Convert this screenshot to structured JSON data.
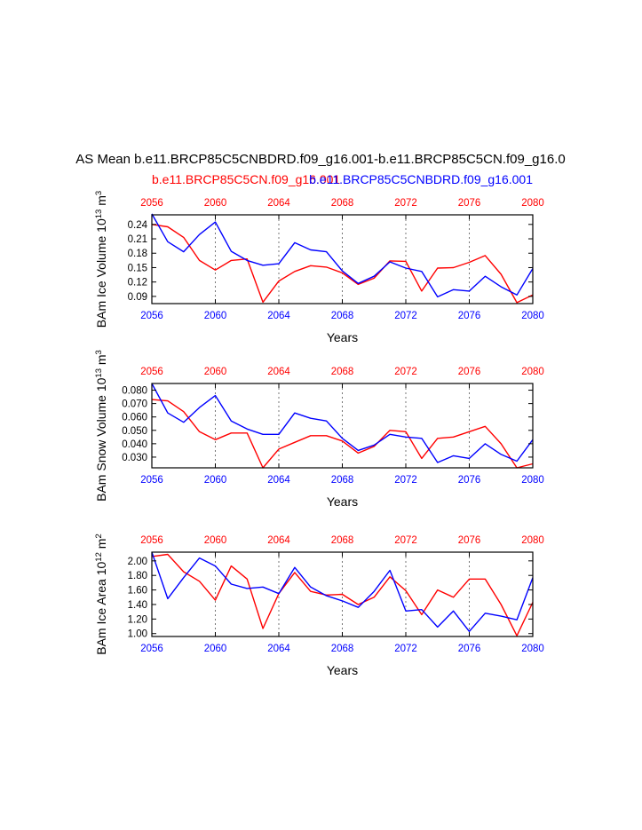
{
  "figure": {
    "title": "AS Mean b.e11.BRCP85C5CNBDRD.f09_g16.001-b.e11.BRCP85C5CN.f09_g16.0",
    "subtitle_red": "b.e11.BRCP85C5CN.f09_g16.001",
    "subtitle_blue": "b.e11.BRCP85C5CNBDRD.f09_g16.001"
  },
  "colors": {
    "red": "#ff0000",
    "blue": "#0000ff",
    "axis": "#000000",
    "grid": "#555555"
  },
  "chart_data": [
    {
      "type": "line",
      "ylabel": "BAm Ice Volume 10^13 m^3",
      "xlabel": "Years",
      "xlim": [
        2056,
        2080
      ],
      "ylim": [
        0.075,
        0.26
      ],
      "xticks": [
        2056,
        2060,
        2064,
        2068,
        2072,
        2076,
        2080
      ],
      "yticks": [
        0.09,
        0.12,
        0.15,
        0.18,
        0.21,
        0.24
      ],
      "ytick_labels": [
        "0.09",
        "0.12",
        "0.15",
        "0.18",
        "0.21",
        "0.24"
      ],
      "vlines": [
        2060,
        2064,
        2068,
        2072,
        2076
      ],
      "x": [
        2056,
        2057,
        2058,
        2059,
        2060,
        2061,
        2062,
        2063,
        2064,
        2065,
        2066,
        2067,
        2068,
        2069,
        2070,
        2071,
        2072,
        2073,
        2074,
        2075,
        2076,
        2077,
        2078,
        2079,
        2080
      ],
      "series": [
        {
          "color": "red",
          "values": [
            0.24,
            0.235,
            0.213,
            0.165,
            0.145,
            0.165,
            0.168,
            0.078,
            0.122,
            0.142,
            0.154,
            0.151,
            0.139,
            0.115,
            0.128,
            0.164,
            0.163,
            0.101,
            0.149,
            0.15,
            0.161,
            0.175,
            0.136,
            0.077,
            0.093
          ]
        },
        {
          "color": "blue",
          "values": [
            0.262,
            0.204,
            0.183,
            0.219,
            0.245,
            0.184,
            0.165,
            0.155,
            0.158,
            0.202,
            0.187,
            0.183,
            0.143,
            0.117,
            0.132,
            0.162,
            0.149,
            0.142,
            0.089,
            0.104,
            0.101,
            0.132,
            0.11,
            0.093,
            0.148
          ]
        }
      ]
    },
    {
      "type": "line",
      "ylabel": "BAm Snow Volume 10^13 m^3",
      "xlabel": "Years",
      "xlim": [
        2056,
        2080
      ],
      "ylim": [
        0.022,
        0.085
      ],
      "xticks": [
        2056,
        2060,
        2064,
        2068,
        2072,
        2076,
        2080
      ],
      "yticks": [
        0.03,
        0.04,
        0.05,
        0.06,
        0.07,
        0.08
      ],
      "ytick_labels": [
        "0.030",
        "0.040",
        "0.050",
        "0.060",
        "0.070",
        "0.080"
      ],
      "vlines": [
        2060,
        2064,
        2068,
        2072,
        2076
      ],
      "x": [
        2056,
        2057,
        2058,
        2059,
        2060,
        2061,
        2062,
        2063,
        2064,
        2065,
        2066,
        2067,
        2068,
        2069,
        2070,
        2071,
        2072,
        2073,
        2074,
        2075,
        2076,
        2077,
        2078,
        2079,
        2080
      ],
      "series": [
        {
          "color": "red",
          "values": [
            0.073,
            0.072,
            0.064,
            0.049,
            0.043,
            0.048,
            0.048,
            0.022,
            0.036,
            0.041,
            0.046,
            0.046,
            0.042,
            0.033,
            0.038,
            0.05,
            0.049,
            0.029,
            0.044,
            0.045,
            0.049,
            0.053,
            0.04,
            0.022,
            0.025
          ]
        },
        {
          "color": "blue",
          "values": [
            0.085,
            0.063,
            0.056,
            0.067,
            0.076,
            0.057,
            0.051,
            0.047,
            0.047,
            0.063,
            0.059,
            0.057,
            0.044,
            0.035,
            0.039,
            0.047,
            0.045,
            0.044,
            0.026,
            0.031,
            0.029,
            0.04,
            0.032,
            0.027,
            0.043
          ]
        }
      ]
    },
    {
      "type": "line",
      "ylabel": "BAm Ice Area 10^12 m^2",
      "xlabel": "Years",
      "xlim": [
        2056,
        2080
      ],
      "ylim": [
        0.96,
        2.12
      ],
      "xticks": [
        2056,
        2060,
        2064,
        2068,
        2072,
        2076,
        2080
      ],
      "yticks": [
        1.0,
        1.2,
        1.4,
        1.6,
        1.8,
        2.0
      ],
      "ytick_labels": [
        "1.00",
        "1.20",
        "1.40",
        "1.60",
        "1.80",
        "2.00"
      ],
      "vlines": [
        2060,
        2064,
        2068,
        2072,
        2076
      ],
      "x": [
        2056,
        2057,
        2058,
        2059,
        2060,
        2061,
        2062,
        2063,
        2064,
        2065,
        2066,
        2067,
        2068,
        2069,
        2070,
        2071,
        2072,
        2073,
        2074,
        2075,
        2076,
        2077,
        2078,
        2079,
        2080
      ],
      "series": [
        {
          "color": "red",
          "values": [
            2.06,
            2.09,
            1.85,
            1.72,
            1.46,
            1.93,
            1.75,
            1.07,
            1.55,
            1.84,
            1.58,
            1.53,
            1.54,
            1.4,
            1.5,
            1.78,
            1.59,
            1.26,
            1.6,
            1.5,
            1.75,
            1.75,
            1.4,
            0.97,
            1.43
          ]
        },
        {
          "color": "blue",
          "values": [
            2.12,
            1.48,
            1.77,
            2.04,
            1.93,
            1.68,
            1.62,
            1.64,
            1.55,
            1.91,
            1.64,
            1.52,
            1.45,
            1.36,
            1.58,
            1.87,
            1.31,
            1.33,
            1.09,
            1.31,
            1.03,
            1.28,
            1.24,
            1.19,
            1.77
          ]
        }
      ]
    }
  ]
}
